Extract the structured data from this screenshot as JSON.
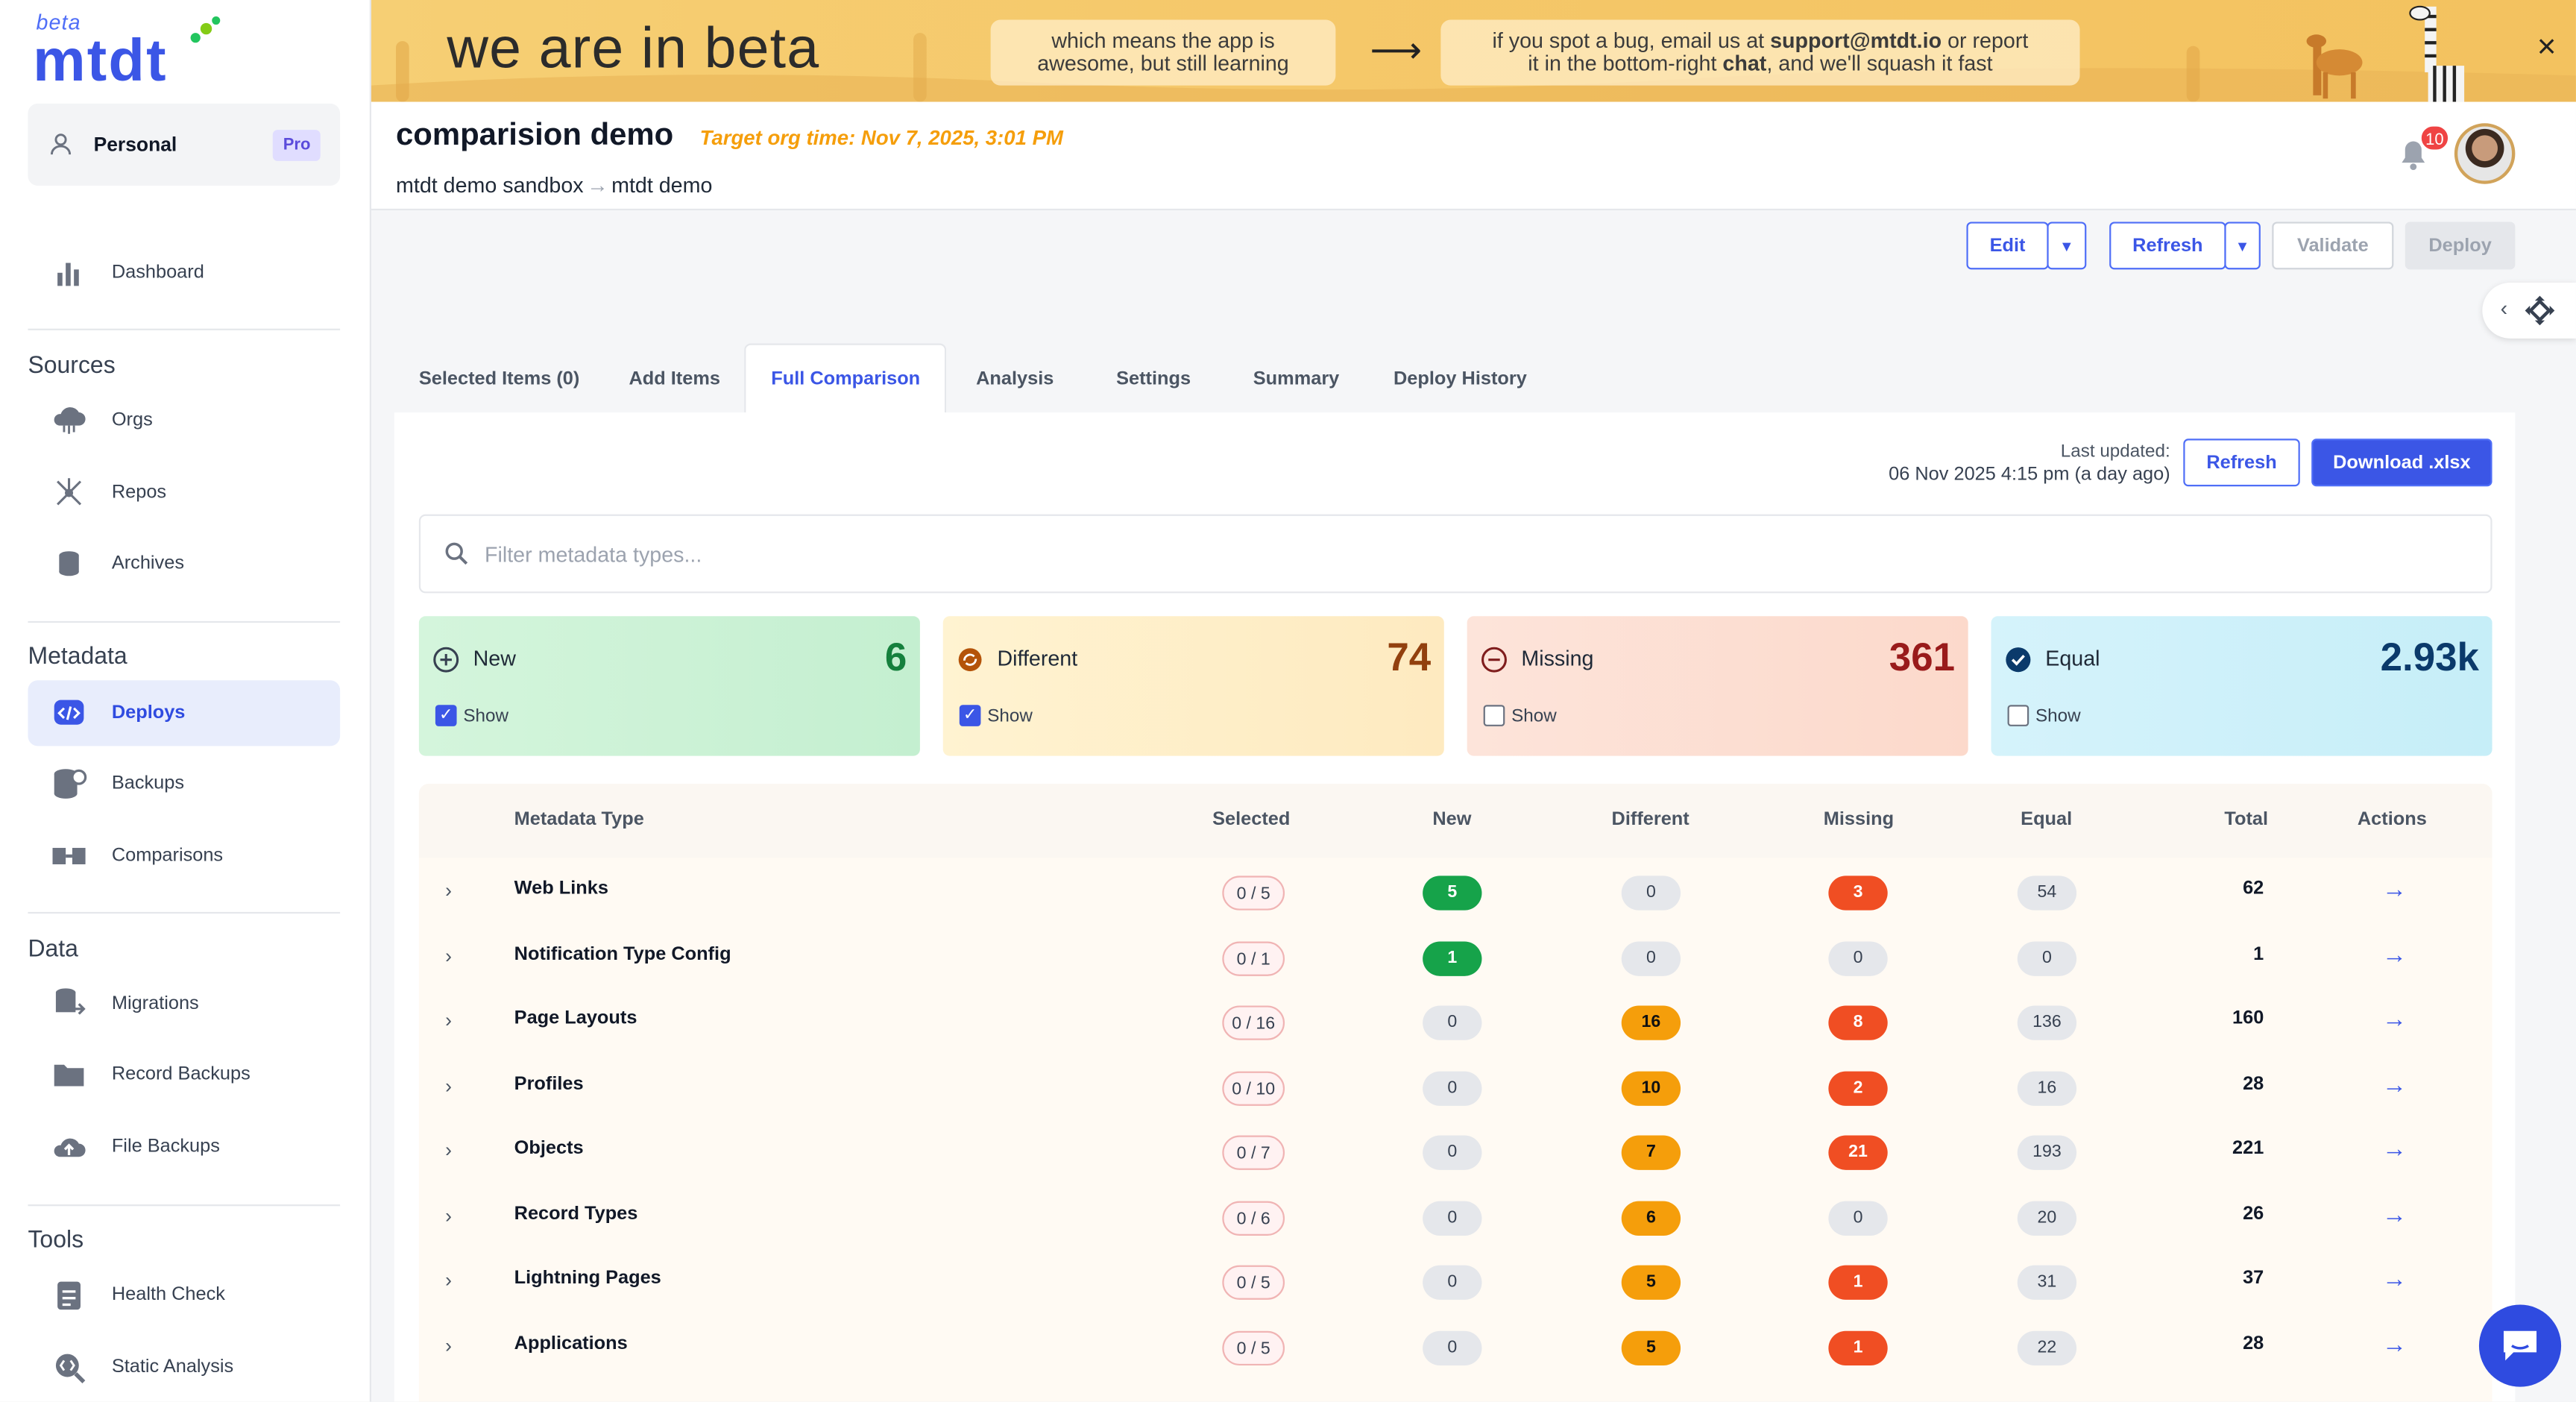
{
  "sidebar": {
    "logo": {
      "beta": "beta",
      "word": "mtdt"
    },
    "workspace": {
      "label": "Personal",
      "plan": "Pro"
    },
    "dashboard": "Dashboard",
    "sections": [
      {
        "title": "Sources",
        "items": [
          "Orgs",
          "Repos",
          "Archives"
        ]
      },
      {
        "title": "Metadata",
        "items": [
          "Deploys",
          "Backups",
          "Comparisons"
        ]
      },
      {
        "title": "Data",
        "items": [
          "Migrations",
          "Record Backups",
          "File Backups"
        ]
      },
      {
        "title": "Tools",
        "items": [
          "Health Check",
          "Static Analysis"
        ]
      }
    ],
    "active_item": "Deploys"
  },
  "banner": {
    "headline": "we are in beta",
    "note1_line1": "which means the app is",
    "note1_line2": "awesome, but still learning",
    "note2_line1_a": "if you spot a bug, email us at",
    "note2_email": "support@mtdt.io",
    "note2_line1_b": "or report",
    "note2_line2_a": "it in the bottom-right",
    "note2_chat": "chat",
    "note2_line2_b": ", and we'll squash it fast",
    "close": "×"
  },
  "header": {
    "title": "comparision demo",
    "target_time": "Target org time: Nov 7, 2025, 3:01 PM",
    "source_org": "mtdt demo sandbox",
    "target_org": "mtdt demo",
    "notification_count": "10"
  },
  "toolbar": {
    "edit": "Edit",
    "refresh": "Refresh",
    "validate": "Validate",
    "deploy": "Deploy"
  },
  "tabs": [
    {
      "label": "Selected Items (0)"
    },
    {
      "label": "Add Items"
    },
    {
      "label": "Full Comparison"
    },
    {
      "label": "Analysis"
    },
    {
      "label": "Settings"
    },
    {
      "label": "Summary"
    },
    {
      "label": "Deploy History"
    }
  ],
  "active_tab": "Full Comparison",
  "panel": {
    "last_updated_label": "Last updated:",
    "last_updated_value": "06 Nov 2025 4:15 pm (a day ago)",
    "refresh": "Refresh",
    "download": "Download .xlsx",
    "search_placeholder": "Filter metadata types..."
  },
  "cards": [
    {
      "name": "New",
      "count": "6",
      "show": "Show",
      "checked": true,
      "color": "#16a34a"
    },
    {
      "name": "Different",
      "count": "74",
      "show": "Show",
      "checked": true,
      "color": "#b45309"
    },
    {
      "name": "Missing",
      "count": "361",
      "show": "Show",
      "checked": false,
      "color": "#b91c1c"
    },
    {
      "name": "Equal",
      "count": "2.93k",
      "show": "Show",
      "checked": false,
      "color": "#0b3a6b"
    }
  ],
  "table": {
    "headers": {
      "type": "Metadata Type",
      "selected": "Selected",
      "new": "New",
      "different": "Different",
      "missing": "Missing",
      "equal": "Equal",
      "total": "Total",
      "actions": "Actions"
    },
    "rows": [
      {
        "type": "Web Links",
        "selected": "0 / 5",
        "new": "5",
        "different": "0",
        "missing": "3",
        "equal": "54",
        "total": "62"
      },
      {
        "type": "Notification Type Config",
        "selected": "0 / 1",
        "new": "1",
        "different": "0",
        "missing": "0",
        "equal": "0",
        "total": "1"
      },
      {
        "type": "Page Layouts",
        "selected": "0 / 16",
        "new": "0",
        "different": "16",
        "missing": "8",
        "equal": "136",
        "total": "160"
      },
      {
        "type": "Profiles",
        "selected": "0 / 10",
        "new": "0",
        "different": "10",
        "missing": "2",
        "equal": "16",
        "total": "28"
      },
      {
        "type": "Objects",
        "selected": "0 / 7",
        "new": "0",
        "different": "7",
        "missing": "21",
        "equal": "193",
        "total": "221"
      },
      {
        "type": "Record Types",
        "selected": "0 / 6",
        "new": "0",
        "different": "6",
        "missing": "0",
        "equal": "20",
        "total": "26"
      },
      {
        "type": "Lightning Pages",
        "selected": "0 / 5",
        "new": "0",
        "different": "5",
        "missing": "1",
        "equal": "31",
        "total": "37"
      },
      {
        "type": "Applications",
        "selected": "0 / 5",
        "new": "0",
        "different": "5",
        "missing": "1",
        "equal": "22",
        "total": "28"
      }
    ]
  }
}
